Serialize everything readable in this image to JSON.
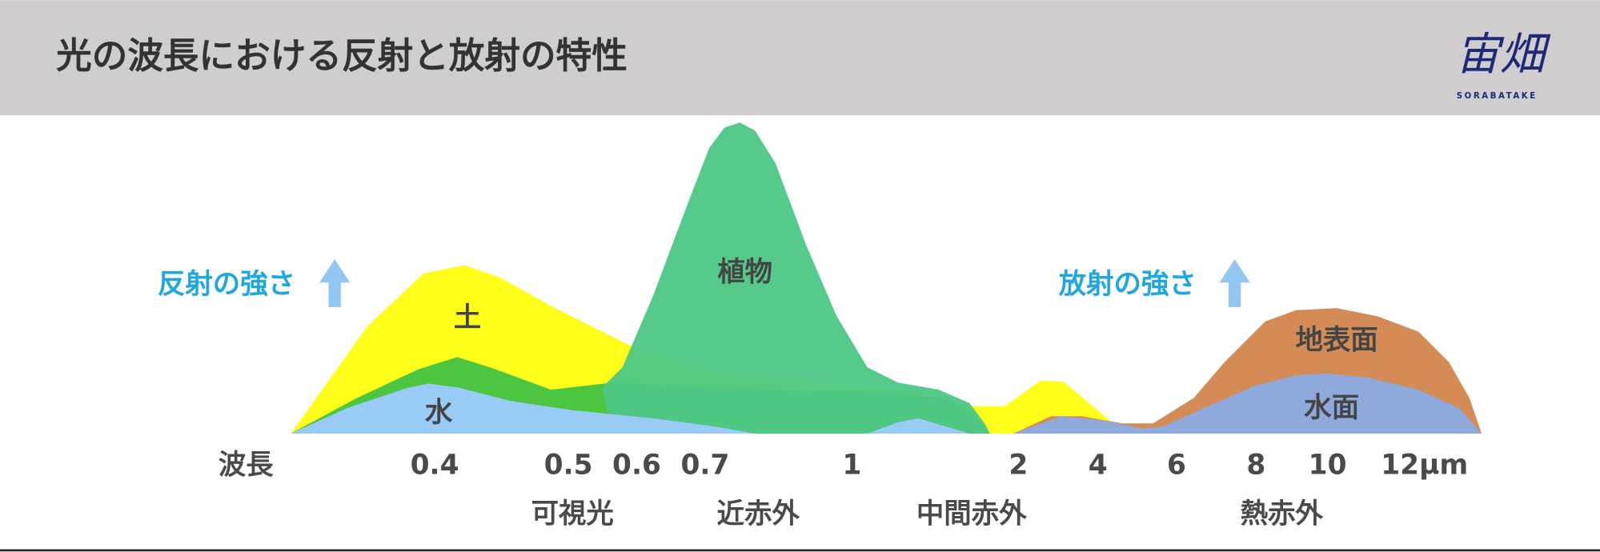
{
  "header": {
    "title": "光の波長における反射と放射の特性",
    "logo": "宙畑",
    "logo_sub": "SORABATAKE"
  },
  "labels": {
    "reflection": "反射の強さ",
    "emission": "放射の強さ"
  },
  "curves": {
    "soil": "土",
    "vegetation": "植物",
    "water": "水",
    "land_surface": "地表面",
    "water_surface": "水面"
  },
  "axis": {
    "title": "波長",
    "ticks": [
      "0.4",
      "0.5",
      "0.6",
      "0.7",
      "1",
      "2",
      "4",
      "6",
      "8",
      "10",
      "12µm"
    ]
  },
  "bands": [
    "可視光",
    "近赤外",
    "中間赤外",
    "熱赤外"
  ]
}
